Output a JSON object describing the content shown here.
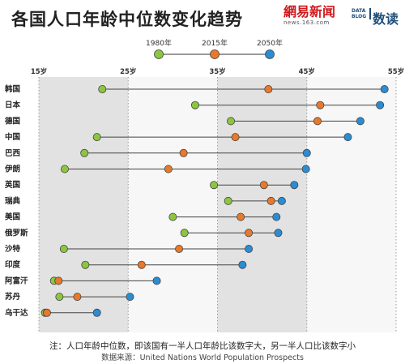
{
  "title": "各国人口年龄中位数变化趋势",
  "brand_netease": {
    "main": "網易新闻",
    "sub": "news.163.com"
  },
  "brand_datablog": {
    "logo": "DATA BLOG",
    "text": "数读"
  },
  "chart_data": {
    "type": "dot-plot",
    "x_unit": "岁",
    "xlim": [
      15,
      55
    ],
    "x_ticks": [
      15,
      25,
      35,
      45,
      55
    ],
    "x_tick_labels": [
      "15岁",
      "25岁",
      "35岁",
      "45岁",
      "55岁"
    ],
    "shaded_bands": [
      [
        15,
        25
      ],
      [
        35,
        45
      ]
    ],
    "legend_position": "top-center",
    "series": [
      {
        "name": "1980年",
        "color": "#8cc63f"
      },
      {
        "name": "2015年",
        "color": "#e8792b"
      },
      {
        "name": "2050年",
        "color": "#2a8dd4"
      }
    ],
    "categories": [
      "韩国",
      "日本",
      "德国",
      "中国",
      "巴西",
      "伊朗",
      "英国",
      "瑞典",
      "美国",
      "俄罗斯",
      "沙特",
      "印度",
      "阿富汗",
      "苏丹",
      "乌干达"
    ],
    "values": {
      "1980年": [
        22.1,
        32.5,
        36.5,
        21.5,
        20.1,
        17.9,
        34.6,
        36.2,
        30.0,
        31.3,
        17.8,
        20.2,
        16.7,
        17.3,
        15.7
      ],
      "2015年": [
        40.7,
        46.5,
        46.2,
        37.0,
        31.2,
        29.5,
        40.2,
        41.0,
        37.6,
        38.5,
        30.7,
        26.5,
        17.2,
        19.3,
        15.9
      ],
      "2050年": [
        53.7,
        53.2,
        51.0,
        49.6,
        45.0,
        44.9,
        43.6,
        42.2,
        41.6,
        41.8,
        38.5,
        37.8,
        28.2,
        25.2,
        21.5
      ]
    },
    "footnote": "注：人口年龄中位数，即该国有一半人口年龄比该数字大，另一半人口比该数字小",
    "source": "数据来源：United Nations World Population Prospects"
  }
}
